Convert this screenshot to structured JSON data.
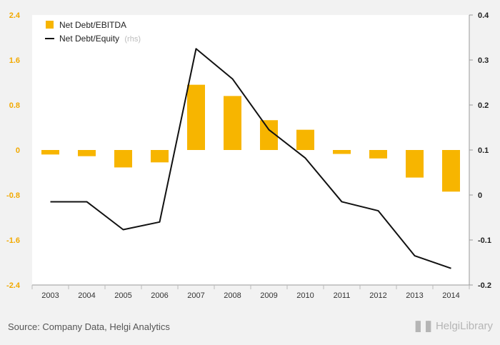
{
  "chart_data": {
    "type": "bar+line",
    "categories": [
      "2003",
      "2004",
      "2005",
      "2006",
      "2007",
      "2008",
      "2009",
      "2010",
      "2011",
      "2012",
      "2013",
      "2014"
    ],
    "series": [
      {
        "name": "Net Debt/EBITDA",
        "axis": "left",
        "type": "bar",
        "color": "#f7b500",
        "values": [
          -0.08,
          -0.11,
          -0.31,
          -0.22,
          1.16,
          0.96,
          0.53,
          0.36,
          -0.07,
          -0.15,
          -0.49,
          -0.74
        ]
      },
      {
        "name": "Net Debt/Equity",
        "name_note": "(rhs)",
        "axis": "right",
        "type": "line",
        "color": "#111111",
        "values": [
          -0.015,
          -0.015,
          -0.077,
          -0.06,
          0.325,
          0.258,
          0.145,
          0.082,
          -0.015,
          -0.035,
          -0.135,
          -0.163
        ]
      }
    ],
    "y_left": {
      "min": -2.4,
      "max": 2.4,
      "ticks": [
        "2.4",
        "1.6",
        "0.8",
        "0",
        "-0.8",
        "-1.6",
        "-2.4"
      ]
    },
    "y_right": {
      "min": -0.2,
      "max": 0.4,
      "ticks": [
        "0.4",
        "0.3",
        "0.2",
        "0.1",
        "0",
        "-0.1",
        "-0.2"
      ]
    },
    "legend_position": "top-left",
    "grid": false
  },
  "footer": {
    "source": "Source: Company Data, Helgi Analytics",
    "brand": "HelgiLibrary"
  }
}
